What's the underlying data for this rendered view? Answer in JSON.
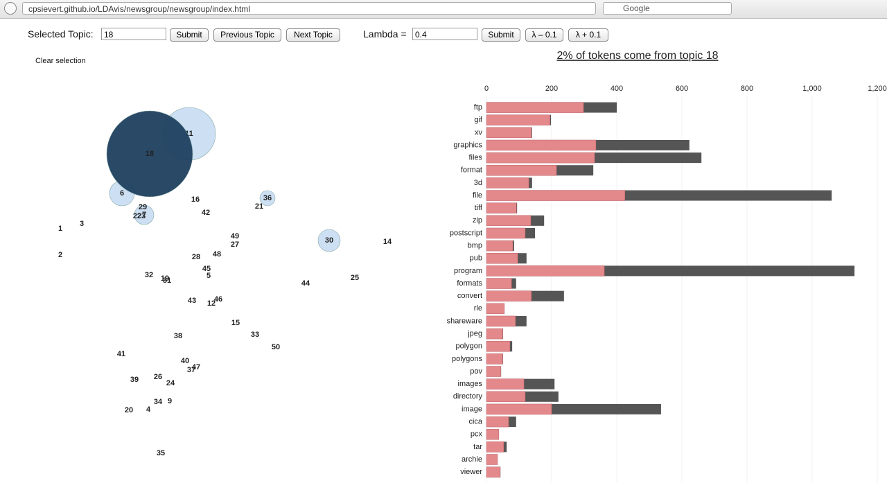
{
  "browser": {
    "url": "cpsievert.github.io/LDAvis/newsgroup/newsgroup/index.html",
    "search": "Google"
  },
  "controls": {
    "topic_label": "Selected Topic:",
    "topic_input": "18",
    "submit": "Submit",
    "previous": "Previous Topic",
    "next": "Next Topic",
    "lambda_label": "Lambda =",
    "lambda_input": "0.4",
    "lambda_submit": "Submit",
    "lambda_down": "λ – 0.1",
    "lambda_up": "λ + 0.1",
    "clear": "Clear selection"
  },
  "chart_data": [
    {
      "type": "scatter",
      "labels": [
        1,
        2,
        3,
        4,
        5,
        6,
        7,
        9,
        11,
        12,
        14,
        15,
        16,
        18,
        19,
        20,
        21,
        22,
        23,
        24,
        25,
        26,
        27,
        28,
        29,
        30,
        31,
        32,
        33,
        34,
        35,
        36,
        37,
        38,
        39,
        40,
        41,
        42,
        43,
        44,
        45,
        46,
        47,
        48,
        49,
        50
      ],
      "x": [
        47,
        47,
        78,
        174,
        261,
        136,
        168,
        205,
        233,
        265,
        519,
        300,
        242,
        176,
        198,
        146,
        334,
        158,
        164,
        206,
        472,
        188,
        299,
        243,
        166,
        435,
        201,
        175,
        328,
        188,
        192,
        346,
        236,
        217,
        154,
        227,
        135,
        257,
        237,
        401,
        258,
        275,
        243,
        273,
        299,
        358
      ],
      "y": [
        350,
        312,
        357,
        89,
        282,
        401,
        370,
        101,
        487,
        242,
        331,
        214,
        392,
        458,
        278,
        88,
        382,
        368,
        368,
        127,
        279,
        136,
        327,
        309,
        381,
        333,
        275,
        283,
        197,
        100,
        26,
        394,
        146,
        195,
        132,
        159,
        169,
        373,
        246,
        271,
        292,
        248,
        150,
        313,
        339,
        179
      ],
      "sizes": [
        0,
        0,
        0,
        0,
        0,
        18,
        14,
        0,
        38,
        0,
        0,
        0,
        0,
        62,
        0,
        0,
        0,
        0,
        0,
        0,
        0,
        0,
        0,
        0,
        0,
        16,
        0,
        0,
        0,
        0,
        0,
        11,
        0,
        0,
        0,
        0,
        0,
        0,
        0,
        0,
        0,
        0,
        0,
        0,
        0,
        0
      ],
      "xlim": [
        0,
        560
      ],
      "ylim": [
        0,
        560
      ],
      "color": "#c6dcf2",
      "selected": 18,
      "selected_color": "#1e3f5e"
    },
    {
      "type": "bar",
      "orientation": "horizontal",
      "title": "2% of tokens come from topic 18",
      "categories": [
        "ftp",
        "gif",
        "xv",
        "graphics",
        "files",
        "format",
        "3d",
        "file",
        "tiff",
        "zip",
        "postscript",
        "bmp",
        "pub",
        "program",
        "formats",
        "convert",
        "rle",
        "shareware",
        "jpeg",
        "polygon",
        "polygons",
        "pov",
        "images",
        "directory",
        "image",
        "cica",
        "pcx",
        "tar",
        "archie",
        "viewer"
      ],
      "series": [
        {
          "color": "#555555",
          "values": [
            400,
            198,
            140,
            623,
            660,
            328,
            140,
            1060,
            94,
            177,
            149,
            85,
            123,
            1130,
            91,
            238,
            55,
            123,
            51,
            79,
            51,
            45,
            209,
            221,
            536,
            91,
            38,
            62,
            34,
            43
          ]
        },
        {
          "color": "#e3898c",
          "values": [
            298,
            195,
            138,
            336,
            332,
            215,
            130,
            425,
            92,
            136,
            119,
            81,
            96,
            362,
            77,
            138,
            55,
            89,
            50,
            72,
            50,
            44,
            115,
            119,
            200,
            68,
            38,
            53,
            34,
            42
          ]
        }
      ],
      "xlim": [
        0,
        1200
      ],
      "xticks": [
        0,
        200,
        400,
        600,
        800,
        {
          "value": 1000,
          "label": "1,000"
        },
        {
          "value": 1200,
          "label": "1,200"
        }
      ],
      "grid": true
    }
  ]
}
